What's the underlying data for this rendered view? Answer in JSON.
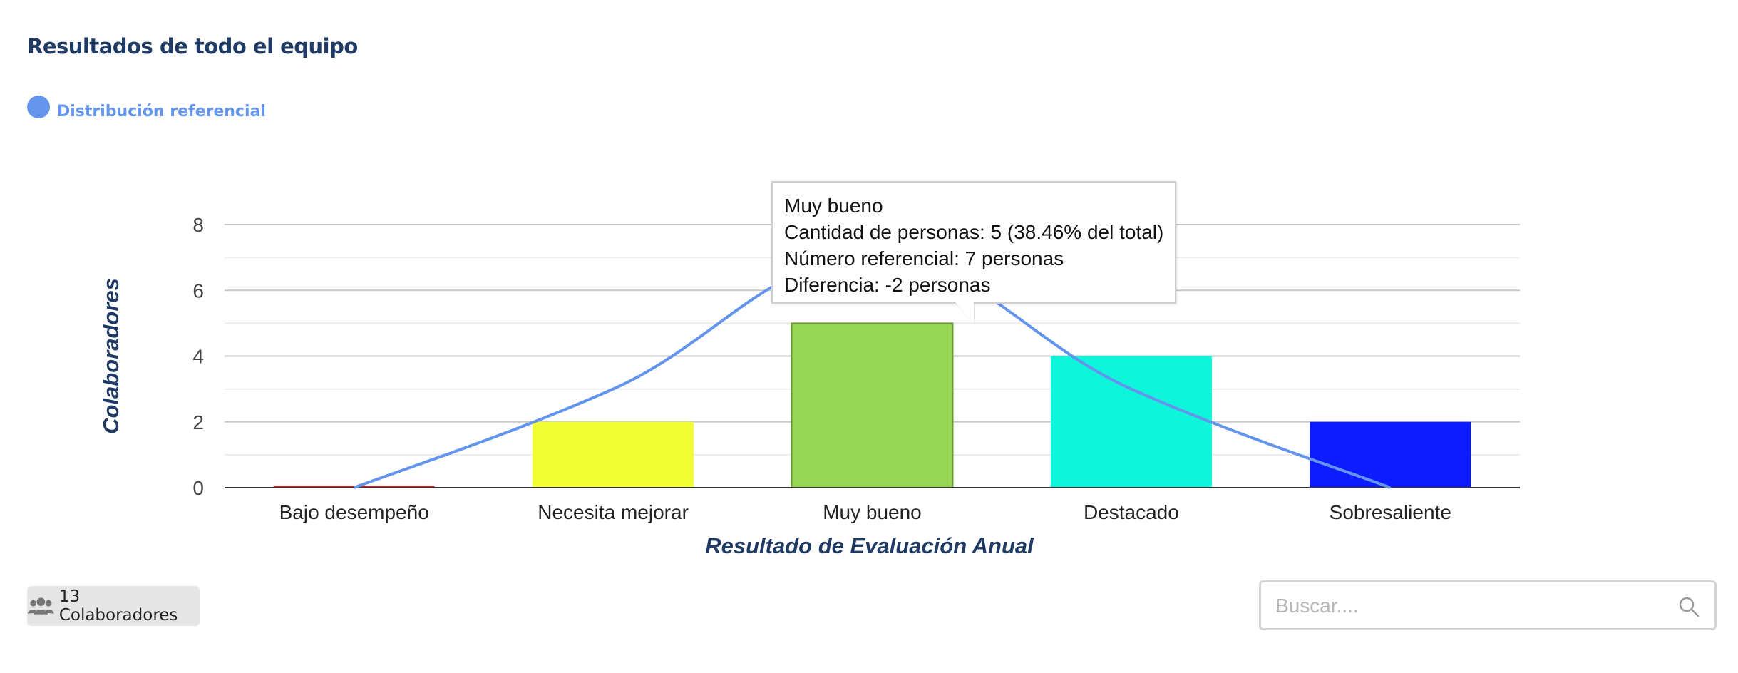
{
  "page": {
    "title": "Resultados de todo el equipo",
    "legend_label": "Distribución referencial",
    "legend_color": "#6495ed"
  },
  "chart_data": {
    "type": "bar",
    "categories": [
      "Bajo desempeño",
      "Necesita mejorar",
      "Muy bueno",
      "Destacado",
      "Sobresaliente"
    ],
    "series": [
      {
        "values": [
          0,
          2,
          5,
          4,
          2
        ],
        "colors": [
          "#c62828",
          "#f2ff33",
          "#96d654",
          "#0ef5dc",
          "#0c1cff"
        ]
      },
      {
        "name": "Distribución referencial",
        "type": "line",
        "values": [
          0,
          3,
          7,
          3,
          0
        ],
        "color": "#6495ed"
      }
    ],
    "xlabel": "Resultado de Evaluación Anual",
    "ylabel": "Colaboradores",
    "ylim": [
      0,
      8
    ],
    "yticks": [
      0,
      2,
      4,
      6,
      8
    ],
    "grid": true
  },
  "tooltip": {
    "line1": "Muy bueno",
    "line2": "Cantidad de personas: 5 (38.46% del total)",
    "line3": "Número referencial: 7 personas",
    "line4": "Diferencia: -2 personas"
  },
  "footer": {
    "collaborators_label": "13 Colaboradores",
    "people_icon": "users-icon"
  },
  "search": {
    "placeholder": "Buscar....",
    "value": "",
    "icon": "search-icon"
  },
  "colors": {
    "title": "#1f3a64",
    "axis_label": "#1f3a64"
  }
}
